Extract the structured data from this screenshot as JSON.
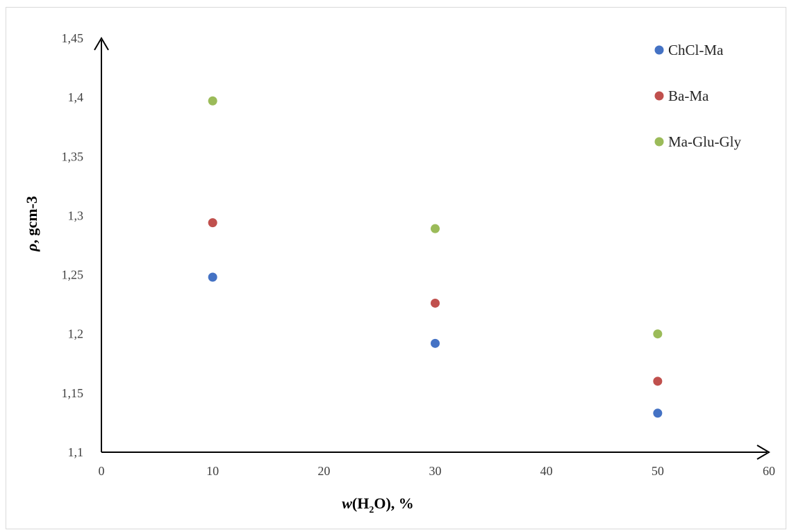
{
  "chart_data": {
    "type": "scatter",
    "xlabel": "w(H2O), %",
    "xlabel_parts": {
      "italic": "w",
      "pre": "(H",
      "sub": "2",
      "post": "O), %"
    },
    "ylabel": "ρ, gcm-3",
    "ylabel_parts": {
      "italic": "ρ",
      "rest": ", gcm-3"
    },
    "xlim": [
      0,
      60
    ],
    "ylim": [
      1.1,
      1.45
    ],
    "x_ticks": [
      "0",
      "10",
      "20",
      "30",
      "40",
      "50",
      "60"
    ],
    "y_ticks": [
      "1,1",
      "1,15",
      "1,2",
      "1,25",
      "1,3",
      "1,35",
      "1,4",
      "1,45"
    ],
    "grid": false,
    "legend_position": "top-right",
    "series": [
      {
        "name": "ChCl-Ma",
        "color": "#4472c4",
        "x": [
          10,
          30,
          50
        ],
        "y": [
          1.248,
          1.192,
          1.133
        ]
      },
      {
        "name": "Ba-Ma",
        "color": "#c0504d",
        "x": [
          10,
          30,
          50
        ],
        "y": [
          1.294,
          1.226,
          1.16
        ]
      },
      {
        "name": "Ma-Glu-Gly",
        "color": "#9bbb59",
        "x": [
          10,
          30,
          50
        ],
        "y": [
          1.397,
          1.289,
          1.2
        ]
      }
    ]
  }
}
